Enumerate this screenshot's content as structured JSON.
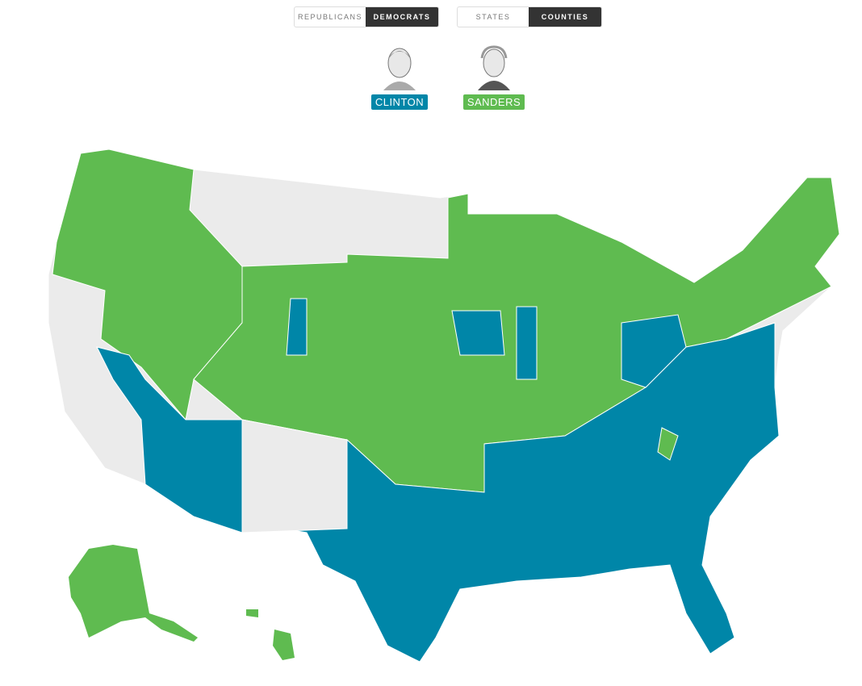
{
  "toggles": {
    "party": [
      "REPUBLICANS",
      "DEMOCRATS"
    ],
    "level": [
      "STATES",
      "COUNTIES"
    ]
  },
  "candidates": [
    {
      "name": "CLINTON",
      "color": "#0086a8"
    },
    {
      "name": "SANDERS",
      "color": "#5fbb50"
    }
  ]
}
